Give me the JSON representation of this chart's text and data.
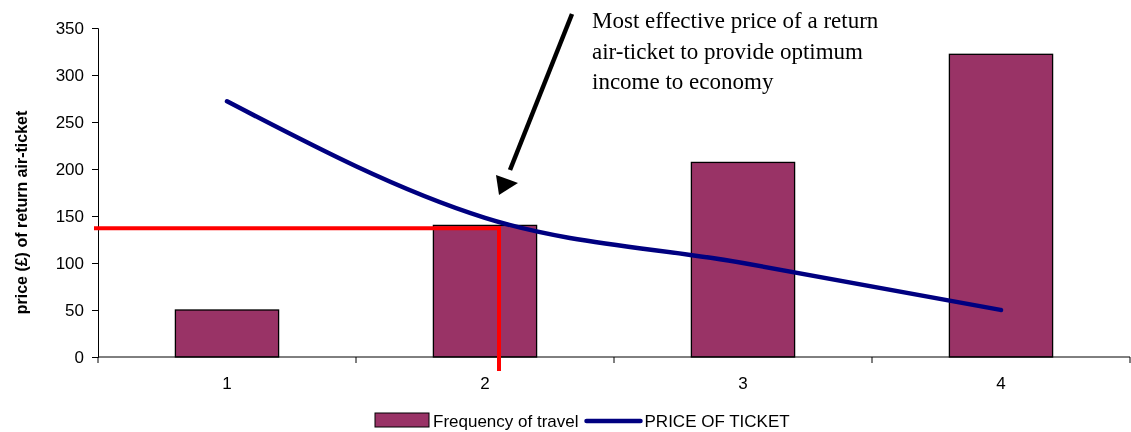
{
  "chart_data": {
    "type": "bar",
    "ylabel": "price (£) of return air-ticket",
    "categories": [
      "1",
      "2",
      "3",
      "4"
    ],
    "series": [
      {
        "name": "Frequency of travel",
        "color": "#993366",
        "values": [
          50,
          140,
          207,
          322
        ]
      },
      {
        "name": "PRICE OF TICKET",
        "type": "line",
        "color": "#000080",
        "values": [
          272,
          148,
          100,
          50
        ]
      }
    ],
    "ylim": [
      0,
      350
    ],
    "yticks": [
      0,
      50,
      100,
      150,
      200,
      250,
      300,
      350
    ],
    "grid": false,
    "legend": "bottom",
    "marker": "none",
    "line_style": "solid",
    "ref_lines": [
      {
        "axis": "y",
        "value": 137,
        "color": "#ff0000"
      },
      {
        "axis": "x",
        "value": "2",
        "color": "#ff0000"
      }
    ],
    "annotations": [
      "Most effective price of a return air-ticket to provide optimum income to economy"
    ]
  }
}
